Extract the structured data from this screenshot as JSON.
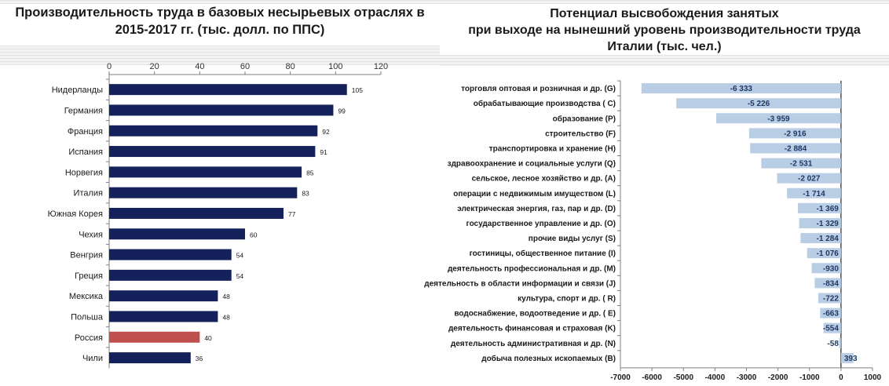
{
  "left_chart": {
    "title_line1": "Производительность труда в базовых несырьевых отраслях в",
    "title_line2": "2015-2017 гг. (тыс. долл. по ППС)"
  },
  "right_chart": {
    "title_line1": "Потенциал высвобождения занятых",
    "title_line2": "при выходе на нынешний уровень производительности труда",
    "title_line3": "Италии (тыс. чел.)"
  },
  "colors": {
    "bar_navy": "#14215a",
    "bar_russia": "#c0504d",
    "bar_light_blue": "#b9cde5",
    "value_label_blue": "#1f3864",
    "axis": "#7f7f7f",
    "text": "#1a1a1a"
  },
  "chart_data": [
    {
      "type": "bar",
      "orientation": "horizontal",
      "title": "Производительность труда в базовых несырьевых отраслях в 2015-2017 гг. (тыс. долл. по ППС)",
      "categories": [
        "Нидерланды",
        "Германия",
        "Франция",
        "Испания",
        "Норвегия",
        "Италия",
        "Южная Корея",
        "Чехия",
        "Венгрия",
        "Греция",
        "Мексика",
        "Польша",
        "Россия",
        "Чили"
      ],
      "values": [
        105,
        99,
        92,
        91,
        85,
        83,
        77,
        60,
        54,
        54,
        48,
        48,
        40,
        36
      ],
      "highlight": "Россия",
      "xlim": [
        0,
        120
      ],
      "xticks": [
        0,
        20,
        40,
        60,
        80,
        100,
        120
      ],
      "axis_position": "top",
      "grid": false
    },
    {
      "type": "bar",
      "orientation": "horizontal",
      "title": "Потенциал высвобождения занятых при выходе на нынешний уровень производительности труда Италии (тыс. чел.)",
      "categories": [
        "торговля оптовая и розничная и др. (G)",
        "обрабатывающие производства ( C)",
        "образование (P)",
        "строительство (F)",
        "транспортировка и хранение (H)",
        "здравоохранение и социальные услуги (Q)",
        "сельское, лесное хозяйство и др. (A)",
        "операции с недвижимым имуществом (L)",
        "электрическая энергия, газ, пар и др. (D)",
        "государственное управление и др. (O)",
        "прочие виды услуг (S)",
        "гостиницы, общественное питание (I)",
        "деятельность профессиональная и др. (M)",
        "деятельность в области информации и связи (J)",
        "культура, спорт и др. ( R)",
        "водоснабжение, водоотведение и др. ( E)",
        "деятельность финансовая и страховая (K)",
        "деятельность административная и др. (N)",
        "добыча полезных ископаемых (B)"
      ],
      "values": [
        -6333,
        -5226,
        -3959,
        -2916,
        -2884,
        -2531,
        -2027,
        -1714,
        -1369,
        -1329,
        -1284,
        -1076,
        -930,
        -834,
        -722,
        -663,
        -554,
        -58,
        393
      ],
      "value_labels": [
        "-6 333",
        "-5 226",
        "-3 959",
        "-2 916",
        "-2 884",
        "-2 531",
        "-2 027",
        "-1 714",
        "-1 369",
        "-1 329",
        "-1 284",
        "-1 076",
        "-930",
        "-834",
        "-722",
        "-663",
        "-554",
        "-58",
        "393"
      ],
      "xlim": [
        -7000,
        1000
      ],
      "xticks": [
        -7000,
        -6000,
        -5000,
        -4000,
        -3000,
        -2000,
        -1000,
        0,
        1000
      ],
      "axis_position": "bottom",
      "grid": false
    }
  ]
}
